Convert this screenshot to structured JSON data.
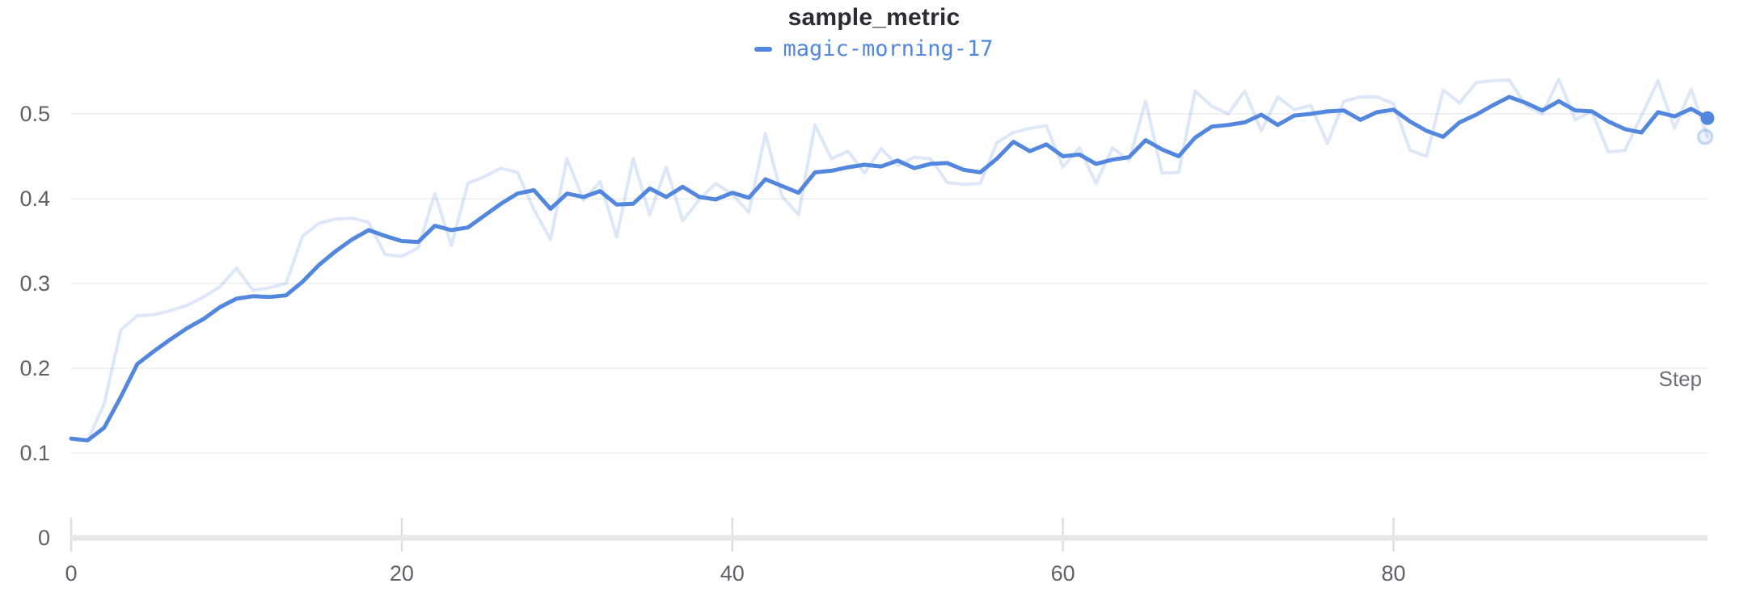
{
  "panel": {
    "title": "sample_metric",
    "legend": {
      "run_name": "magic-morning-17",
      "color": "#5387dd"
    }
  },
  "colors": {
    "line_blue": "#5387dd",
    "raw_line_rgba": "rgba(83,135,221,0.20)",
    "raw_dot_fill": "rgba(83,135,221,0.10)",
    "raw_dot_stroke": "rgba(83,135,221,0.30)",
    "gridline": "#ededf0",
    "axis_bar": "#e7e7ea",
    "tick_mark": "#dfdfe3",
    "tick_label": "#606069",
    "axis_title": "#6e6e78",
    "title_text": "#2b2b31",
    "background": "#ffffff"
  },
  "chart_data": {
    "type": "line",
    "title": "sample_metric",
    "xlabel": "Step",
    "ylabel": "",
    "xlim": [
      0,
      99
    ],
    "ylim": [
      0,
      0.555
    ],
    "x_ticks": [
      0,
      20,
      40,
      60,
      80
    ],
    "x_tick_labels": [
      "0",
      "20",
      "40",
      "60",
      "80"
    ],
    "y_ticks": [
      0,
      0.1,
      0.2,
      0.3,
      0.4,
      0.5
    ],
    "y_tick_labels": [
      "0",
      "0.1",
      "0.2",
      "0.3",
      "0.4",
      "0.5"
    ],
    "grid": "horizontal-only",
    "legend_position": "top-center",
    "x": [
      0,
      1,
      2,
      3,
      4,
      5,
      6,
      7,
      8,
      9,
      10,
      11,
      12,
      13,
      14,
      15,
      16,
      17,
      18,
      19,
      20,
      21,
      22,
      23,
      24,
      25,
      26,
      27,
      28,
      29,
      30,
      31,
      32,
      33,
      34,
      35,
      36,
      37,
      38,
      39,
      40,
      41,
      42,
      43,
      44,
      45,
      46,
      47,
      48,
      49,
      50,
      51,
      52,
      53,
      54,
      55,
      56,
      57,
      58,
      59,
      60,
      61,
      62,
      63,
      64,
      65,
      66,
      67,
      68,
      69,
      70,
      71,
      72,
      73,
      74,
      75,
      76,
      77,
      78,
      79,
      80,
      81,
      82,
      83,
      84,
      85,
      86,
      87,
      88,
      89,
      90,
      91,
      92,
      93,
      94,
      95,
      96,
      97,
      98,
      99
    ],
    "series": [
      {
        "name": "magic-morning-17 (raw)",
        "role": "raw",
        "opacity": 0.2,
        "stroke_width": 4,
        "values": [
          0.117,
          0.115,
          0.158,
          0.245,
          0.262,
          0.263,
          0.268,
          0.274,
          0.284,
          0.296,
          0.318,
          0.292,
          0.295,
          0.3,
          0.356,
          0.371,
          0.376,
          0.377,
          0.372,
          0.334,
          0.332,
          0.342,
          0.406,
          0.345,
          0.418,
          0.426,
          0.436,
          0.431,
          0.387,
          0.352,
          0.447,
          0.398,
          0.42,
          0.355,
          0.447,
          0.381,
          0.437,
          0.374,
          0.399,
          0.418,
          0.405,
          0.384,
          0.477,
          0.403,
          0.381,
          0.487,
          0.447,
          0.456,
          0.43,
          0.459,
          0.439,
          0.449,
          0.447,
          0.419,
          0.417,
          0.418,
          0.466,
          0.478,
          0.483,
          0.486,
          0.437,
          0.46,
          0.418,
          0.46,
          0.445,
          0.515,
          0.43,
          0.431,
          0.527,
          0.509,
          0.5,
          0.527,
          0.48,
          0.52,
          0.505,
          0.51,
          0.465,
          0.515,
          0.52,
          0.52,
          0.512,
          0.457,
          0.45,
          0.528,
          0.513,
          0.537,
          0.539,
          0.54,
          0.51,
          0.5,
          0.541,
          0.493,
          0.503,
          0.455,
          0.457,
          0.498,
          0.539,
          0.483,
          0.529,
          0.473
        ]
      },
      {
        "name": "magic-morning-17 (smoothed)",
        "role": "smoothed",
        "opacity": 1,
        "stroke_width": 5,
        "values": [
          0.117,
          0.115,
          0.13,
          0.166,
          0.205,
          0.22,
          0.234,
          0.247,
          0.258,
          0.272,
          0.282,
          0.285,
          0.284,
          0.286,
          0.302,
          0.322,
          0.338,
          0.352,
          0.363,
          0.356,
          0.35,
          0.349,
          0.368,
          0.363,
          0.366,
          0.38,
          0.394,
          0.406,
          0.41,
          0.388,
          0.406,
          0.402,
          0.409,
          0.393,
          0.394,
          0.412,
          0.402,
          0.414,
          0.402,
          0.399,
          0.407,
          0.401,
          0.423,
          0.415,
          0.407,
          0.431,
          0.433,
          0.437,
          0.44,
          0.438,
          0.445,
          0.436,
          0.441,
          0.442,
          0.434,
          0.431,
          0.447,
          0.467,
          0.456,
          0.464,
          0.45,
          0.452,
          0.441,
          0.446,
          0.449,
          0.469,
          0.458,
          0.45,
          0.472,
          0.485,
          0.487,
          0.49,
          0.499,
          0.487,
          0.498,
          0.5,
          0.503,
          0.504,
          0.493,
          0.502,
          0.505,
          0.491,
          0.48,
          0.473,
          0.49,
          0.499,
          0.51,
          0.52,
          0.513,
          0.504,
          0.515,
          0.504,
          0.503,
          0.491,
          0.482,
          0.478,
          0.502,
          0.497,
          0.506,
          0.495
        ]
      }
    ]
  }
}
